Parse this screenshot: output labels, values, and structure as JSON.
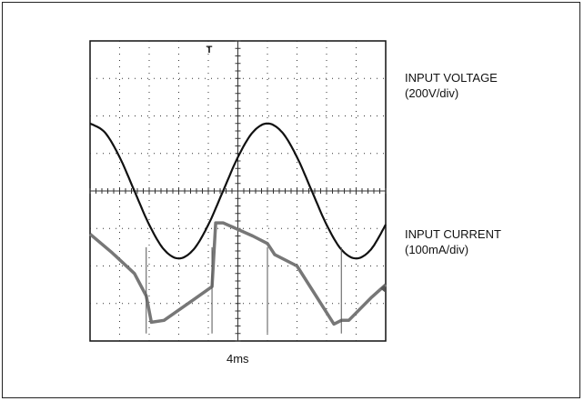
{
  "chart_data": {
    "type": "line",
    "title": "",
    "xlabel": "4ms",
    "x_unit_per_division": "4ms",
    "divisions": {
      "x": 10,
      "y": 8
    },
    "grid": true,
    "trigger_marker": "T",
    "series": [
      {
        "name": "INPUT VOLTAGE",
        "scale": "(200V/div)",
        "color": "#111111",
        "unit": "V",
        "x_ms": [
          0,
          2,
          4,
          6,
          8,
          10,
          12,
          14,
          16,
          18,
          20,
          22,
          24,
          26,
          28,
          30,
          32,
          34,
          36,
          38,
          40
        ],
        "y": [
          360,
          312,
          180,
          0,
          -180,
          -312,
          -360,
          -312,
          -180,
          0,
          180,
          312,
          360,
          312,
          180,
          0,
          -180,
          -312,
          -360,
          -312,
          -180
        ]
      },
      {
        "name": "INPUT CURRENT",
        "scale": "(100mA/div)",
        "color": "#777777",
        "unit": "mA",
        "x_ms": [
          0,
          3,
          6,
          7.6,
          8.3,
          10,
          14,
          16.5,
          17,
          18,
          22,
          24,
          25,
          28,
          33,
          34,
          35,
          38,
          40
        ],
        "y": [
          -115,
          -165,
          -220,
          -280,
          -350,
          -345,
          -290,
          -255,
          -85,
          -85,
          -120,
          -140,
          -170,
          -200,
          -355,
          -345,
          -345,
          -285,
          -250
        ]
      }
    ]
  },
  "labels": {
    "voltage_name": "INPUT VOLTAGE",
    "voltage_scale": "(200V/div)",
    "current_name": "INPUT CURRENT",
    "current_scale": "(100mA/div)",
    "time_scale": "4ms",
    "trigger": "T"
  }
}
